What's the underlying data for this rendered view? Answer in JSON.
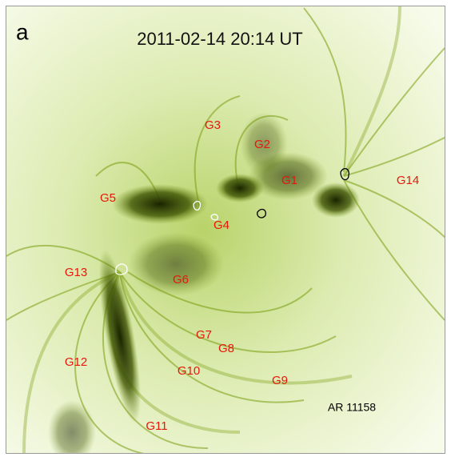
{
  "panel_label": "a",
  "timestamp": "2011-02-14 20:14 UT",
  "region_label": "AR 11158",
  "labels": [
    "G1",
    "G2",
    "G3",
    "G4",
    "G5",
    "G6",
    "G7",
    "G8",
    "G9",
    "G10",
    "G11",
    "G12",
    "G13",
    "G14"
  ]
}
